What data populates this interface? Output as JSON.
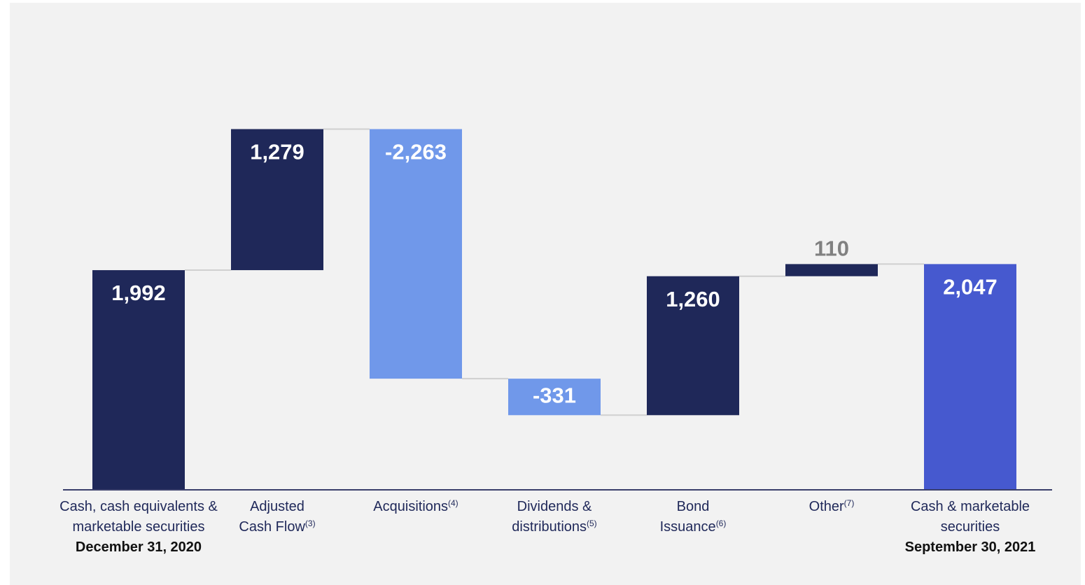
{
  "chart_data": {
    "type": "waterfall",
    "categories": [
      {
        "name": "Cash, cash equivalents & marketable securities",
        "date": "December 31, 2020"
      },
      {
        "name": "Adjusted Cash Flow",
        "note": "(3)"
      },
      {
        "name": "Acquisitions",
        "note": "(4)"
      },
      {
        "name": "Dividends & distributions",
        "note": "(5)"
      },
      {
        "name": "Bond Issuance",
        "note": "(6)"
      },
      {
        "name": "Other",
        "note": "(7)"
      },
      {
        "name": "Cash & marketable securities",
        "date": "September 30, 2021"
      }
    ],
    "values": [
      1992,
      1279,
      -2263,
      -331,
      1260,
      110,
      2047
    ],
    "value_labels": [
      "1,992",
      "1,279",
      "-2,263",
      "-331",
      "1,260",
      "110",
      "2,047"
    ],
    "is_total": [
      true,
      false,
      false,
      false,
      false,
      false,
      true
    ],
    "colors": {
      "increase": "#1f2859",
      "decrease": "#7098ea",
      "total_start": "#1f2859",
      "total_end": "#4659cf"
    }
  }
}
